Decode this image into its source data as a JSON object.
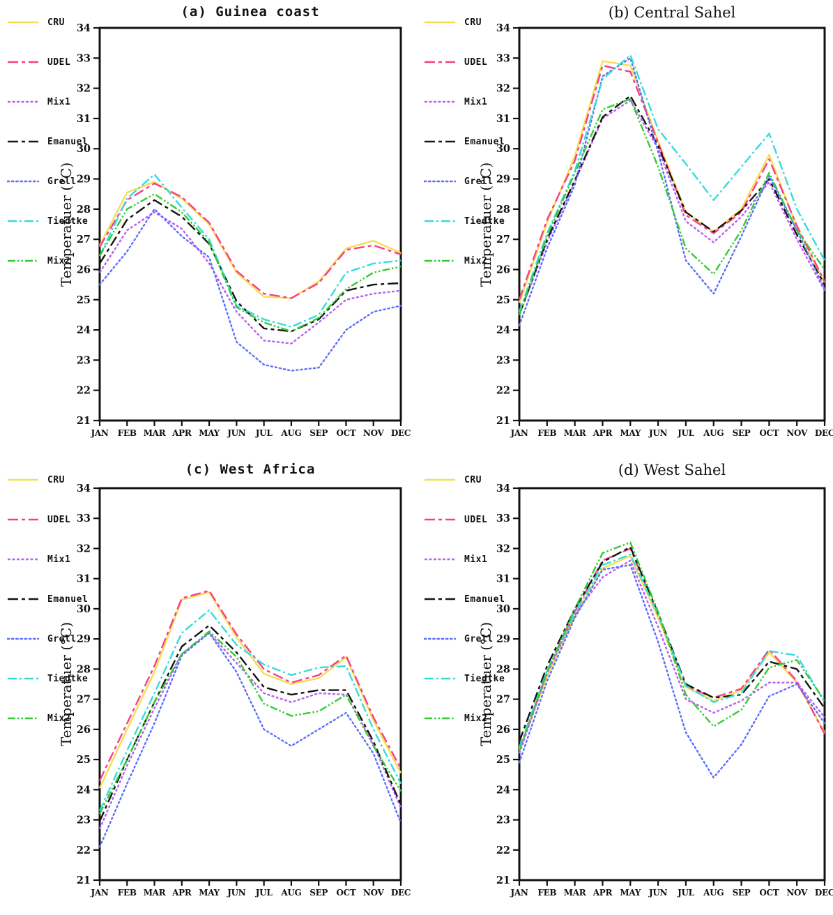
{
  "ylabel": "Temperatuer (°C)",
  "months": [
    "JAN",
    "FEB",
    "MAR",
    "APR",
    "MAY",
    "JUN",
    "JUL",
    "AUG",
    "SEP",
    "OCT",
    "NOV",
    "DEC"
  ],
  "y_axis": {
    "min": 21,
    "max": 34,
    "tick_step": 1
  },
  "series_styles": [
    {
      "name": "CRU",
      "color": "#f3df52",
      "dash": "",
      "cap": "butt"
    },
    {
      "name": "UDEL",
      "color": "#fb3c8a",
      "dash": "15 5 5 5",
      "cap": "butt"
    },
    {
      "name": "Mix1",
      "color": "#b95ef0",
      "dash": "4 2.5",
      "cap": "butt"
    },
    {
      "name": "Emanuel",
      "color": "#141414",
      "dash": "15 5 5 5",
      "cap": "butt"
    },
    {
      "name": "Grell",
      "color": "#5b6efc",
      "dash": "2.2 4",
      "cap": "round"
    },
    {
      "name": "Tiedtke",
      "color": "#35dbdb",
      "dash": "13 4 3 4",
      "cap": "butt"
    },
    {
      "name": "Mix2",
      "color": "#33cb33",
      "dash": "11 3 2.5 3 2.5 3",
      "cap": "butt"
    }
  ],
  "chart_data": [
    {
      "type": "line",
      "title": "(a) Guinea coast",
      "title_style": "mono",
      "region": "Guinea coast",
      "xlabel": "",
      "ylabel": "Temperatuer (°C)",
      "ylim": [
        21,
        34
      ],
      "grid": false,
      "legend_position": "left-outside",
      "categories": [
        "JAN",
        "FEB",
        "MAR",
        "APR",
        "MAY",
        "JUN",
        "JUL",
        "AUG",
        "SEP",
        "OCT",
        "NOV",
        "DEC"
      ],
      "series": [
        {
          "name": "CRU",
          "values": [
            26.8,
            28.55,
            28.9,
            28.35,
            27.5,
            25.9,
            25.1,
            25.05,
            25.6,
            26.7,
            26.95,
            26.55
          ]
        },
        {
          "name": "UDEL",
          "values": [
            26.75,
            28.3,
            28.85,
            28.4,
            27.55,
            25.95,
            25.2,
            25.05,
            25.55,
            26.65,
            26.8,
            26.5
          ]
        },
        {
          "name": "Mix1",
          "values": [
            25.9,
            27.3,
            27.9,
            27.35,
            26.2,
            24.6,
            23.65,
            23.55,
            24.25,
            25.0,
            25.2,
            25.3
          ]
        },
        {
          "name": "Emanuel",
          "values": [
            26.2,
            27.65,
            28.3,
            27.75,
            26.85,
            24.95,
            24.05,
            23.95,
            24.35,
            25.3,
            25.5,
            25.55
          ]
        },
        {
          "name": "Grell",
          "values": [
            25.5,
            26.6,
            28.0,
            27.1,
            26.4,
            23.6,
            22.85,
            22.65,
            22.75,
            24.0,
            24.6,
            24.8
          ]
        },
        {
          "name": "Tiedtke",
          "values": [
            26.45,
            28.35,
            29.15,
            28.05,
            27.0,
            24.8,
            24.35,
            24.1,
            24.5,
            25.9,
            26.2,
            26.3
          ]
        },
        {
          "name": "Mix2",
          "values": [
            26.45,
            28.0,
            28.5,
            27.9,
            26.9,
            24.75,
            24.25,
            23.95,
            24.4,
            25.35,
            25.9,
            26.1
          ]
        }
      ]
    },
    {
      "type": "line",
      "title": "(b) Central Sahel",
      "title_style": "serif",
      "region": "Central Sahel",
      "xlabel": "",
      "ylabel": "Temperatuer (°C)",
      "ylim": [
        21,
        34
      ],
      "grid": false,
      "legend_position": "left-outside",
      "categories": [
        "JAN",
        "FEB",
        "MAR",
        "APR",
        "MAY",
        "JUN",
        "JUL",
        "AUG",
        "SEP",
        "OCT",
        "NOV",
        "DEC"
      ],
      "series": [
        {
          "name": "CRU",
          "values": [
            24.9,
            27.55,
            29.75,
            32.9,
            32.75,
            30.25,
            27.9,
            27.25,
            28.0,
            29.8,
            27.4,
            25.55
          ]
        },
        {
          "name": "UDEL",
          "values": [
            25.0,
            27.65,
            29.6,
            32.75,
            32.55,
            30.2,
            27.8,
            27.2,
            27.9,
            29.65,
            27.45,
            25.6
          ]
        },
        {
          "name": "Mix1",
          "values": [
            24.5,
            26.9,
            28.9,
            31.0,
            31.6,
            30.0,
            27.6,
            26.9,
            27.75,
            28.9,
            27.0,
            25.3
          ]
        },
        {
          "name": "Emanuel",
          "values": [
            24.5,
            27.0,
            28.95,
            31.05,
            31.75,
            30.1,
            27.9,
            27.25,
            27.95,
            29.0,
            27.15,
            25.5
          ]
        },
        {
          "name": "Grell",
          "values": [
            24.15,
            26.7,
            28.8,
            32.4,
            33.0,
            29.9,
            26.3,
            25.2,
            27.1,
            29.1,
            27.3,
            25.35
          ]
        },
        {
          "name": "Tiedtke",
          "values": [
            24.6,
            27.2,
            29.25,
            32.3,
            33.1,
            30.65,
            29.5,
            28.3,
            29.4,
            30.5,
            28.0,
            26.3
          ]
        },
        {
          "name": "Mix2",
          "values": [
            24.5,
            27.1,
            29.2,
            31.3,
            31.65,
            29.4,
            26.7,
            25.85,
            27.3,
            29.2,
            27.3,
            26.0
          ]
        }
      ]
    },
    {
      "type": "line",
      "title": "(c) West Africa",
      "title_style": "mono",
      "region": "West Africa",
      "xlabel": "",
      "ylabel": "Temperatuer (°C)",
      "ylim": [
        21,
        34
      ],
      "grid": false,
      "legend_position": "left-outside",
      "categories": [
        "JAN",
        "FEB",
        "MAR",
        "APR",
        "MAY",
        "JUN",
        "JUL",
        "AUG",
        "SEP",
        "OCT",
        "NOV",
        "DEC"
      ],
      "series": [
        {
          "name": "CRU",
          "values": [
            24.05,
            26.0,
            27.9,
            30.3,
            30.55,
            29.05,
            27.85,
            27.5,
            27.7,
            28.4,
            26.3,
            24.55
          ]
        },
        {
          "name": "UDEL",
          "values": [
            24.3,
            26.2,
            28.1,
            30.35,
            30.6,
            29.15,
            28.0,
            27.55,
            27.8,
            28.45,
            26.4,
            24.7
          ]
        },
        {
          "name": "Mix1",
          "values": [
            22.7,
            24.8,
            26.7,
            28.5,
            29.2,
            28.2,
            27.2,
            26.9,
            27.2,
            27.15,
            25.5,
            23.4
          ]
        },
        {
          "name": "Emanuel",
          "values": [
            22.95,
            25.0,
            26.9,
            28.75,
            29.45,
            28.55,
            27.4,
            27.15,
            27.3,
            27.3,
            25.6,
            23.5
          ]
        },
        {
          "name": "Grell",
          "values": [
            22.1,
            24.2,
            26.2,
            28.45,
            29.2,
            27.9,
            26.0,
            25.45,
            26.0,
            26.55,
            25.2,
            22.9
          ]
        },
        {
          "name": "Tiedtke",
          "values": [
            23.3,
            25.3,
            27.2,
            29.2,
            29.95,
            28.8,
            28.15,
            27.8,
            28.05,
            28.1,
            26.0,
            24.2
          ]
        },
        {
          "name": "Mix2",
          "values": [
            23.2,
            25.0,
            26.9,
            28.5,
            29.25,
            28.4,
            26.85,
            26.45,
            26.6,
            27.15,
            25.45,
            23.95
          ]
        }
      ]
    },
    {
      "type": "line",
      "title": "(d) West Sahel",
      "title_style": "serif",
      "region": "West Sahel",
      "xlabel": "",
      "ylabel": "Temperatuer (°C)",
      "ylim": [
        21,
        34
      ],
      "grid": false,
      "legend_position": "left-outside",
      "categories": [
        "JAN",
        "FEB",
        "MAR",
        "APR",
        "MAY",
        "JUN",
        "JUL",
        "AUG",
        "SEP",
        "OCT",
        "NOV",
        "DEC"
      ],
      "series": [
        {
          "name": "CRU",
          "values": [
            25.35,
            27.75,
            29.75,
            31.35,
            31.75,
            29.7,
            27.4,
            26.95,
            27.3,
            28.55,
            27.55,
            25.9
          ]
        },
        {
          "name": "UDEL",
          "values": [
            25.3,
            27.9,
            29.9,
            31.6,
            32.0,
            29.8,
            27.45,
            27.05,
            27.35,
            28.65,
            27.6,
            25.85
          ]
        },
        {
          "name": "Mix1",
          "values": [
            25.2,
            27.85,
            29.8,
            31.05,
            31.6,
            29.4,
            27.0,
            26.55,
            26.95,
            27.55,
            27.55,
            26.4
          ]
        },
        {
          "name": "Emanuel",
          "values": [
            25.6,
            28.1,
            30.0,
            31.55,
            32.05,
            29.85,
            27.5,
            27.05,
            27.15,
            28.25,
            28.0,
            26.7
          ]
        },
        {
          "name": "Grell",
          "values": [
            24.9,
            27.6,
            29.7,
            31.3,
            31.45,
            28.9,
            25.9,
            24.4,
            25.5,
            27.1,
            27.5,
            26.2
          ]
        },
        {
          "name": "Tiedtke",
          "values": [
            25.4,
            27.95,
            29.85,
            31.45,
            31.8,
            29.8,
            27.45,
            26.9,
            27.2,
            28.6,
            28.45,
            26.9
          ]
        },
        {
          "name": "Mix2",
          "values": [
            25.3,
            27.9,
            30.0,
            31.85,
            32.2,
            29.9,
            27.15,
            26.1,
            26.65,
            28.05,
            28.3,
            26.95
          ]
        }
      ]
    }
  ]
}
